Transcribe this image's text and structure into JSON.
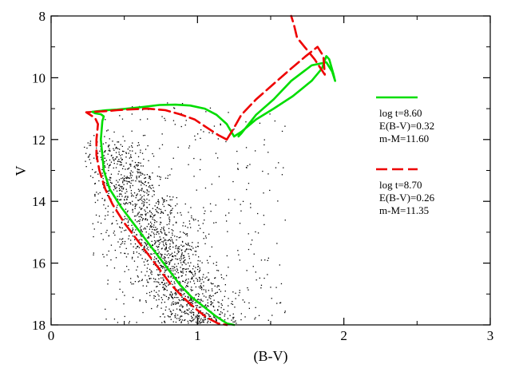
{
  "chart_data": {
    "type": "scatter",
    "title": "",
    "xlabel": "(B-V)",
    "ylabel": "V",
    "xlim": [
      0,
      3
    ],
    "ylim": [
      18,
      8
    ],
    "y_inverted": true,
    "grid": false,
    "x_ticks": [
      0,
      1,
      2,
      3
    ],
    "y_ticks": [
      8,
      10,
      12,
      14,
      16,
      18
    ],
    "x_tick_labels": [
      "0",
      "1",
      "2",
      "3"
    ],
    "y_tick_labels": [
      "8",
      "10",
      "12",
      "14",
      "16",
      "18"
    ],
    "legend_position": "right",
    "legend": [
      {
        "color": "#00dd00",
        "style": "solid",
        "lines": [
          "log t=8.60",
          "E(B-V)=0.32",
          "m-M=11.60"
        ]
      },
      {
        "color": "#ee0000",
        "style": "dashed",
        "lines": [
          "log t=8.70",
          "E(B-V)=0.26",
          "m-M=11.35"
        ]
      }
    ],
    "scatter": {
      "name": "stars",
      "color": "#000000",
      "approx_count": 2000,
      "distribution": "main sequence from (0.3, 11.2) to (1.2, 18) with broad field scatter toward red colours"
    },
    "series": [
      {
        "name": "log t=8.60",
        "color": "#00dd00",
        "style": "solid",
        "x": [
          1.25,
          1.2,
          1.13,
          1.05,
          0.95,
          0.85,
          0.74,
          0.62,
          0.52,
          0.45,
          0.38,
          0.32,
          0.28,
          0.3,
          0.34,
          0.36,
          0.35,
          0.34,
          0.36,
          0.4,
          0.48,
          0.56,
          0.64,
          0.72,
          0.8,
          0.88,
          0.96,
          1.04,
          1.12,
          1.2,
          1.25
        ],
        "y": [
          11.9,
          11.5,
          11.2,
          11.0,
          10.9,
          10.87,
          10.88,
          10.95,
          11.0,
          11.03,
          11.05,
          11.08,
          11.1,
          11.15,
          11.18,
          11.25,
          11.4,
          12.0,
          13.0,
          13.6,
          14.2,
          14.7,
          15.2,
          15.7,
          16.2,
          16.7,
          17.1,
          17.4,
          17.7,
          17.95,
          18.0
        ]
      },
      {
        "name": "log t=8.60 giants",
        "color": "#00dd00",
        "style": "solid",
        "x": [
          1.25,
          1.3,
          1.4,
          1.52,
          1.65,
          1.78,
          1.85,
          1.88,
          1.9,
          1.93,
          1.94,
          1.92,
          1.88,
          1.78,
          1.64,
          1.52,
          1.4,
          1.3,
          1.28
        ],
        "y": [
          11.9,
          11.75,
          11.35,
          11.0,
          10.6,
          10.1,
          9.7,
          9.3,
          9.4,
          9.9,
          10.1,
          9.8,
          9.5,
          9.6,
          10.1,
          10.7,
          11.2,
          11.8,
          11.9
        ]
      },
      {
        "name": "log t=8.70",
        "color": "#ee0000",
        "style": "dashed",
        "x": [
          1.2,
          1.14,
          1.06,
          0.98,
          0.88,
          0.78,
          0.66,
          0.55,
          0.45,
          0.38,
          0.3,
          0.24,
          0.3,
          0.32,
          0.31,
          0.31,
          0.33,
          0.37,
          0.42,
          0.5,
          0.58,
          0.66,
          0.74,
          0.82,
          0.9,
          0.98,
          1.06,
          1.14,
          1.2
        ],
        "y": [
          12.0,
          11.85,
          11.6,
          11.35,
          11.18,
          11.05,
          11.0,
          11.02,
          11.05,
          11.08,
          11.1,
          11.12,
          11.3,
          11.5,
          12.0,
          12.5,
          13.0,
          13.6,
          14.1,
          14.7,
          15.2,
          15.7,
          16.2,
          16.7,
          17.1,
          17.45,
          17.75,
          17.95,
          18.0
        ]
      },
      {
        "name": "log t=8.70 giants",
        "color": "#ee0000",
        "style": "dashed",
        "x": [
          1.2,
          1.24,
          1.3,
          1.4,
          1.52,
          1.64,
          1.74,
          1.82,
          1.86,
          1.87,
          1.8,
          1.68,
          1.66,
          1.64
        ],
        "y": [
          12.0,
          11.7,
          11.2,
          10.7,
          10.2,
          9.7,
          9.3,
          9.0,
          9.3,
          9.9,
          9.4,
          8.7,
          8.3,
          8.0
        ]
      }
    ]
  }
}
